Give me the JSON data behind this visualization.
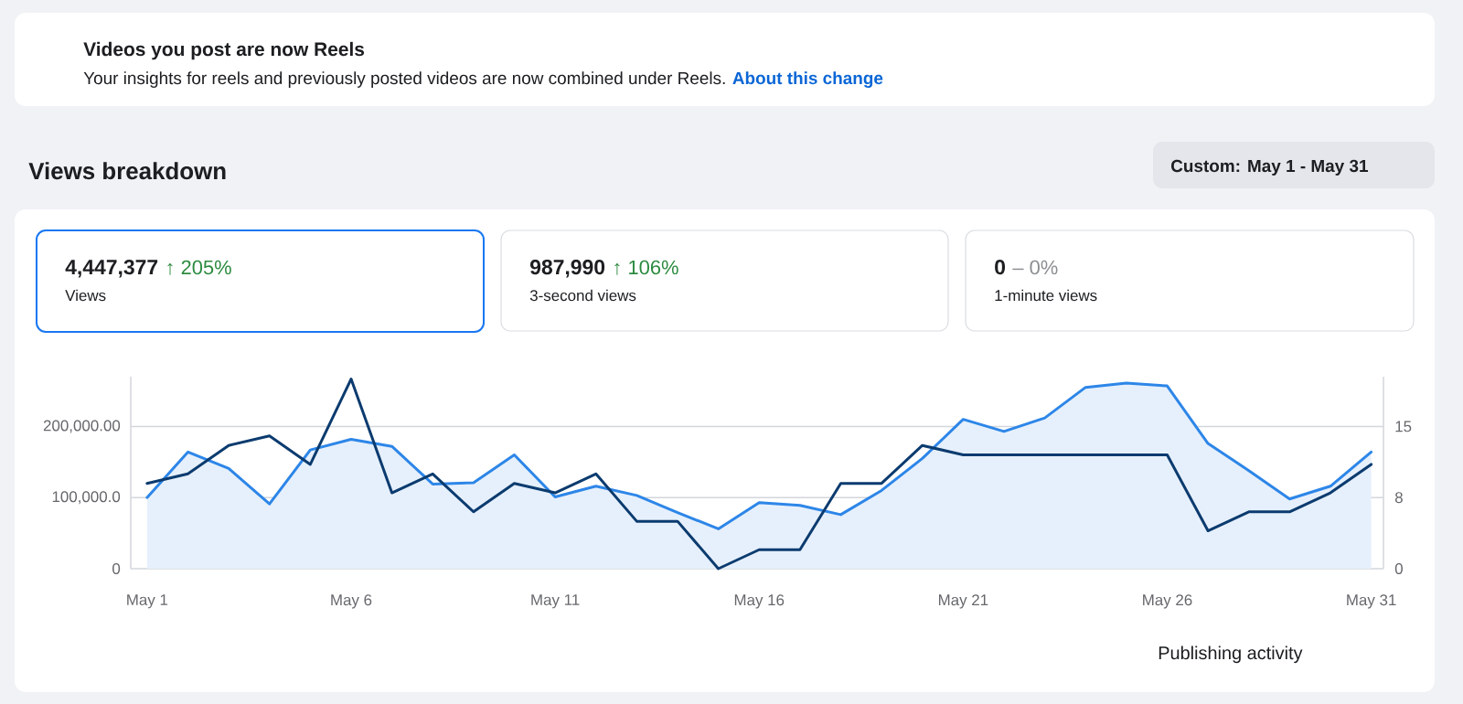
{
  "chart_data": {
    "type": "line",
    "title": "Views breakdown",
    "categories": [
      "May 1",
      null,
      null,
      null,
      null,
      "May 6",
      null,
      null,
      null,
      null,
      "May 11",
      null,
      null,
      null,
      null,
      "May 16",
      null,
      null,
      null,
      null,
      "May 21",
      null,
      null,
      null,
      null,
      "May 26",
      null,
      null,
      null,
      null,
      "May 31"
    ],
    "series": [
      {
        "type": "area",
        "color": "#2d86e8",
        "values": [
          100000,
          164000,
          141000,
          91000,
          167000,
          182000,
          172000,
          119000,
          121000,
          160000,
          101000,
          116000,
          103000,
          79000,
          56000,
          93000,
          89000,
          76000,
          110000,
          155000,
          210000,
          193000,
          212000,
          255000,
          261000,
          257000,
          176000,
          138000,
          98000,
          116000,
          164000
        ]
      },
      {
        "axis": "y2",
        "color": "#0b3b6f",
        "values": [
          9,
          10,
          13,
          14,
          11,
          20,
          8,
          10,
          6,
          9,
          8,
          10,
          5,
          5,
          0,
          2,
          2,
          9,
          9,
          13,
          12,
          12,
          12,
          12,
          12,
          12,
          4,
          6,
          6,
          8,
          11
        ]
      }
    ],
    "ylim": [
      0,
      270000
    ],
    "yticks": [
      0,
      {
        "value": 100000,
        "label": "100,000.0"
      },
      {
        "value": 200000,
        "label": "200,000.00"
      }
    ],
    "y2lim": [
      0,
      20.25
    ],
    "y2ticks": [
      0,
      {
        "value": 7.5,
        "label": "8"
      },
      15
    ],
    "grid": "y",
    "annotations": [
      "Videos you post are now Reels",
      "Your insights for reels and previously posted videos are now combined under Reels.",
      "About this change",
      "Custom: May 1 - May 31",
      "4,447,377",
      "↑ 205%",
      "Views",
      "987,990",
      "↑ 106%",
      "3-second views",
      "0",
      "– 0%",
      "1-minute views",
      "Publishing activity"
    ]
  }
}
